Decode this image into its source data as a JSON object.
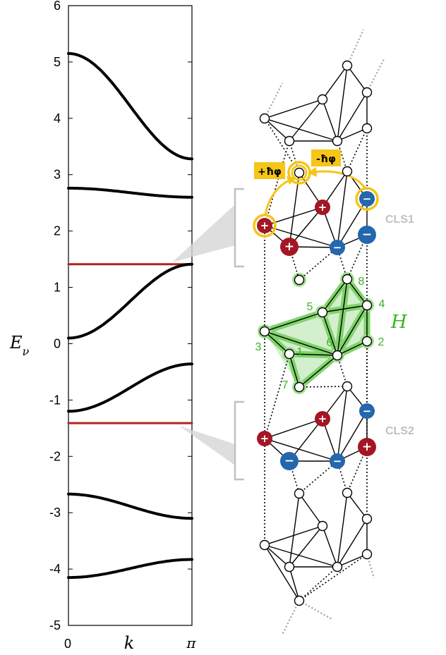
{
  "chart_data": {
    "type": "line",
    "xlabel": "k",
    "ylabel": "E_ν",
    "xlim": [
      0,
      3.14159
    ],
    "ylim": [
      -5,
      6
    ],
    "x_tick_labels": [
      "0",
      "π"
    ],
    "y_ticks": [
      6,
      5,
      4,
      3,
      2,
      1,
      0,
      -1,
      -2,
      -3,
      -4,
      -5
    ],
    "y_tick_labels": [
      "6",
      "5",
      "4",
      "3",
      "2",
      "1",
      "0",
      "-1",
      "-2",
      "-3",
      "-4",
      "-5"
    ],
    "series": [
      {
        "color": "#000000",
        "style": "dispersive",
        "y_at_0": 5.15,
        "y_at_pi": 3.28
      },
      {
        "color": "#000000",
        "style": "dispersive",
        "y_at_0": 2.76,
        "y_at_pi": 2.6
      },
      {
        "color": "#b22222",
        "style": "flat",
        "y_at_0": 1.41,
        "y_at_pi": 1.41
      },
      {
        "color": "#000000",
        "style": "dispersive",
        "y_at_0": 0.1,
        "y_at_pi": 1.41
      },
      {
        "color": "#000000",
        "style": "dispersive",
        "y_at_0": -1.2,
        "y_at_pi": -0.36
      },
      {
        "color": "#b22222",
        "style": "flat",
        "y_at_0": -1.41,
        "y_at_pi": -1.41
      },
      {
        "color": "#000000",
        "style": "dispersive",
        "y_at_0": -2.67,
        "y_at_pi": -3.1
      },
      {
        "color": "#000000",
        "style": "dispersive",
        "y_at_0": -4.15,
        "y_at_pi": -3.83
      }
    ]
  },
  "diagram": {
    "colors": {
      "plus": "#a31624",
      "minus": "#2367ad",
      "highlight": "#35b51e",
      "phase": "#f5c518",
      "flat_band": "#b22222",
      "bracket": "#c0c0c0"
    },
    "cls_labels": [
      "CLS1",
      "CLS2"
    ],
    "unit_cell_label": "H",
    "site_numbers": [
      "1",
      "2",
      "3",
      "4",
      "5",
      "6",
      "7",
      "8"
    ],
    "phase_plus": "+ħφ",
    "phase_minus": "-ħφ",
    "plus_symbol": "+",
    "minus_symbol": "−"
  }
}
